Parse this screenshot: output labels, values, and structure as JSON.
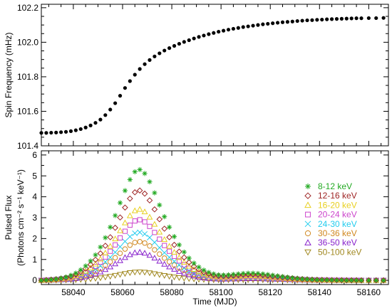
{
  "chart_data": [
    {
      "type": "scatter",
      "panel": "top",
      "xlim": [
        58027,
        58168
      ],
      "ylim": [
        101.4,
        102.22
      ],
      "ylabel": "Spin Frequency (mHz)",
      "yticks": [
        101.4,
        101.6,
        101.8,
        102.0,
        102.2
      ],
      "ytick_labels": [
        "101.4",
        "101.6",
        "101.8",
        "102.0",
        "102.2"
      ],
      "marker": "filled-circle",
      "color": "#000000",
      "grid": false,
      "series": [
        {
          "x": [
            58027,
            58029,
            58031,
            58033,
            58035,
            58037,
            58039,
            58041,
            58043,
            58045,
            58047,
            58049,
            58051,
            58053,
            58055,
            58057,
            58059,
            58061,
            58063,
            58065,
            58067,
            58069,
            58071,
            58073,
            58075,
            58077,
            58079,
            58081,
            58083,
            58085,
            58087,
            58089,
            58091,
            58093,
            58095,
            58097,
            58099,
            58101,
            58103,
            58105,
            58107,
            58109,
            58111,
            58113,
            58115,
            58117,
            58119,
            58121,
            58123,
            58125,
            58127,
            58129,
            58131,
            58133,
            58135,
            58137,
            58139,
            58141,
            58143,
            58145,
            58147,
            58149,
            58151,
            58153,
            58155,
            58157,
            58160,
            58163,
            58166
          ],
          "y": [
            101.475,
            101.475,
            101.476,
            101.477,
            101.479,
            101.481,
            101.485,
            101.49,
            101.497,
            101.506,
            101.518,
            101.533,
            101.552,
            101.578,
            101.61,
            101.647,
            101.69,
            101.735,
            101.775,
            101.812,
            101.845,
            101.873,
            101.897,
            101.918,
            101.936,
            101.952,
            101.966,
            101.979,
            101.991,
            102.002,
            102.012,
            102.022,
            102.031,
            102.039,
            102.047,
            102.054,
            102.061,
            102.067,
            102.073,
            102.078,
            102.083,
            102.088,
            102.092,
            102.096,
            102.1,
            102.104,
            102.107,
            102.11,
            102.113,
            102.116,
            102.118,
            102.12,
            102.123,
            102.125,
            102.127,
            102.128,
            102.13,
            102.131,
            102.133,
            102.134,
            102.135,
            102.136,
            102.137,
            102.138,
            102.139,
            102.139,
            102.14,
            102.14,
            102.141
          ]
        }
      ]
    },
    {
      "type": "scatter",
      "panel": "bottom",
      "xlim": [
        58027,
        58168
      ],
      "ylim": [
        -0.2,
        6.2
      ],
      "xlabel": "Time (MJD)",
      "ylabel": [
        "Pulsed Flux",
        "(Photons cm⁻² s⁻¹ keV⁻¹)"
      ],
      "xticks": [
        58040,
        58060,
        58080,
        58100,
        58120,
        58140,
        58160
      ],
      "xtick_labels": [
        "58040",
        "58060",
        "58080",
        "58100",
        "58120",
        "58140",
        "58160"
      ],
      "yticks": [
        0,
        1,
        2,
        3,
        4,
        5,
        6
      ],
      "ytick_labels": [
        "0",
        "1",
        "2",
        "3",
        "4",
        "5",
        "6"
      ],
      "grid": false,
      "legend_placement": "right",
      "series": [
        {
          "name": "8-12  keV",
          "color": "#22aa22",
          "marker": "asterisk",
          "peak": 5.3
        },
        {
          "name": "12-16  keV",
          "color": "#9e2424",
          "marker": "diamond",
          "peak": 4.3
        },
        {
          "name": "16-20  keV",
          "color": "#e8d020",
          "marker": "triangle-up",
          "peak": 3.4
        },
        {
          "name": "20-24  keV",
          "color": "#cc44cc",
          "marker": "square",
          "peak": 2.9
        },
        {
          "name": "24-30  keV",
          "color": "#22ccee",
          "marker": "cross",
          "peak": 2.3
        },
        {
          "name": "30-36  keV",
          "color": "#d08820",
          "marker": "circle",
          "peak": 1.85
        },
        {
          "name": "36-50  keV",
          "color": "#8822cc",
          "marker": "triangle-up",
          "peak": 1.35
        },
        {
          "name": "50-100 keV",
          "color": "#a08820",
          "marker": "triangle-down",
          "peak": 0.4
        }
      ],
      "x": [
        58027,
        58029,
        58031,
        58033,
        58035,
        58037,
        58039,
        58041,
        58043,
        58045,
        58047,
        58049,
        58051,
        58053,
        58055,
        58057,
        58059,
        58061,
        58063,
        58065,
        58067,
        58069,
        58071,
        58073,
        58075,
        58077,
        58079,
        58081,
        58083,
        58085,
        58087,
        58089,
        58091,
        58093,
        58095,
        58097,
        58099,
        58101,
        58103,
        58105,
        58107,
        58109,
        58111,
        58113,
        58115,
        58117,
        58119,
        58121,
        58123,
        58125,
        58127,
        58129,
        58131,
        58133,
        58135,
        58137,
        58139,
        58141,
        58143,
        58145,
        58147,
        58149,
        58151,
        58153,
        58155,
        58157,
        58160,
        58163,
        58166
      ],
      "profile": [
        0.0,
        0.004,
        0.008,
        0.013,
        0.02,
        0.03,
        0.045,
        0.065,
        0.095,
        0.13,
        0.175,
        0.23,
        0.3,
        0.385,
        0.48,
        0.585,
        0.7,
        0.81,
        0.91,
        0.98,
        1.0,
        0.965,
        0.89,
        0.79,
        0.68,
        0.575,
        0.48,
        0.395,
        0.32,
        0.255,
        0.2,
        0.155,
        0.12,
        0.092,
        0.072,
        0.058,
        0.05,
        0.048,
        0.05,
        0.054,
        0.058,
        0.062,
        0.064,
        0.064,
        0.062,
        0.058,
        0.052,
        0.046,
        0.04,
        0.034,
        0.028,
        0.023,
        0.018,
        0.014,
        0.011,
        0.008,
        0.006,
        0.005,
        0.004,
        0.003,
        0.002,
        0.002,
        0.001,
        0.001,
        0.001,
        0.0,
        0.0,
        0.0,
        0.0
      ]
    }
  ]
}
